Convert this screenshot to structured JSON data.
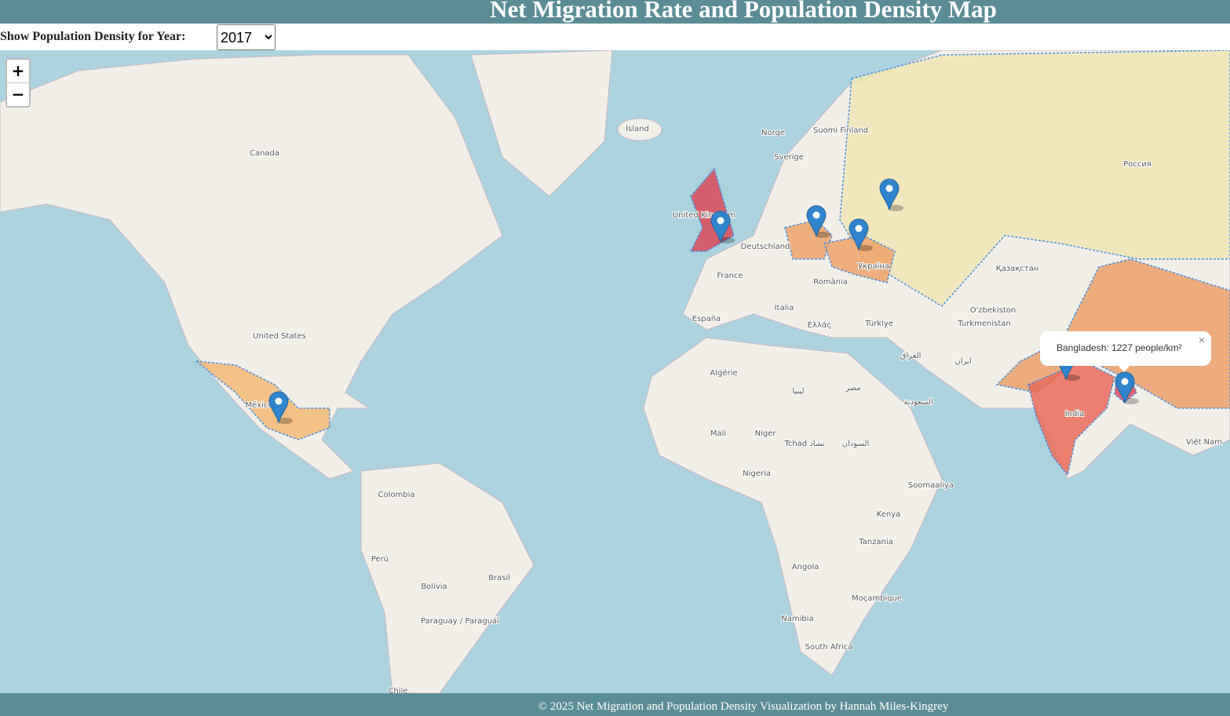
{
  "header": {
    "title": "Net Migration Rate and Population Density Map"
  },
  "controls": {
    "label": "Show Population Density for Year:",
    "year_options": [
      "2017"
    ]
  },
  "zoom": {
    "in": "+",
    "out": "−"
  },
  "popup": {
    "text": "Bangladesh: 1227 people/km²",
    "close": "×"
  },
  "map_labels": [
    "Canada",
    "United States",
    "México",
    "Colombia",
    "Perú",
    "Bolivia",
    "Brasil",
    "Paraguay / Paraguái",
    "Chile",
    "Ísland",
    "Norge",
    "Sverige",
    "Suomi Finland",
    "United Kingdom",
    "Deutschland",
    "France",
    "España",
    "Italia",
    "România",
    "Ελλάς",
    "Türkiye",
    "Україна",
    "Algérie",
    "ليبيا",
    "مصر",
    "Mali",
    "Niger",
    "Tchad تشاد",
    "السودان",
    "Nigeria",
    "Kenya",
    "Tanzania",
    "Angola",
    "Namibia",
    "Moçambique",
    "South Africa",
    "Soomaaliya",
    "Қазақстан",
    "O'zbekiston",
    "Turkmenistan",
    "ایران",
    "العراق",
    "السعودية",
    "India",
    "Россия",
    "Việt Nam"
  ],
  "footer": {
    "text": "© 2025 Net Migration and Population Density Visualization by Hannah Miles-Kingrey"
  }
}
